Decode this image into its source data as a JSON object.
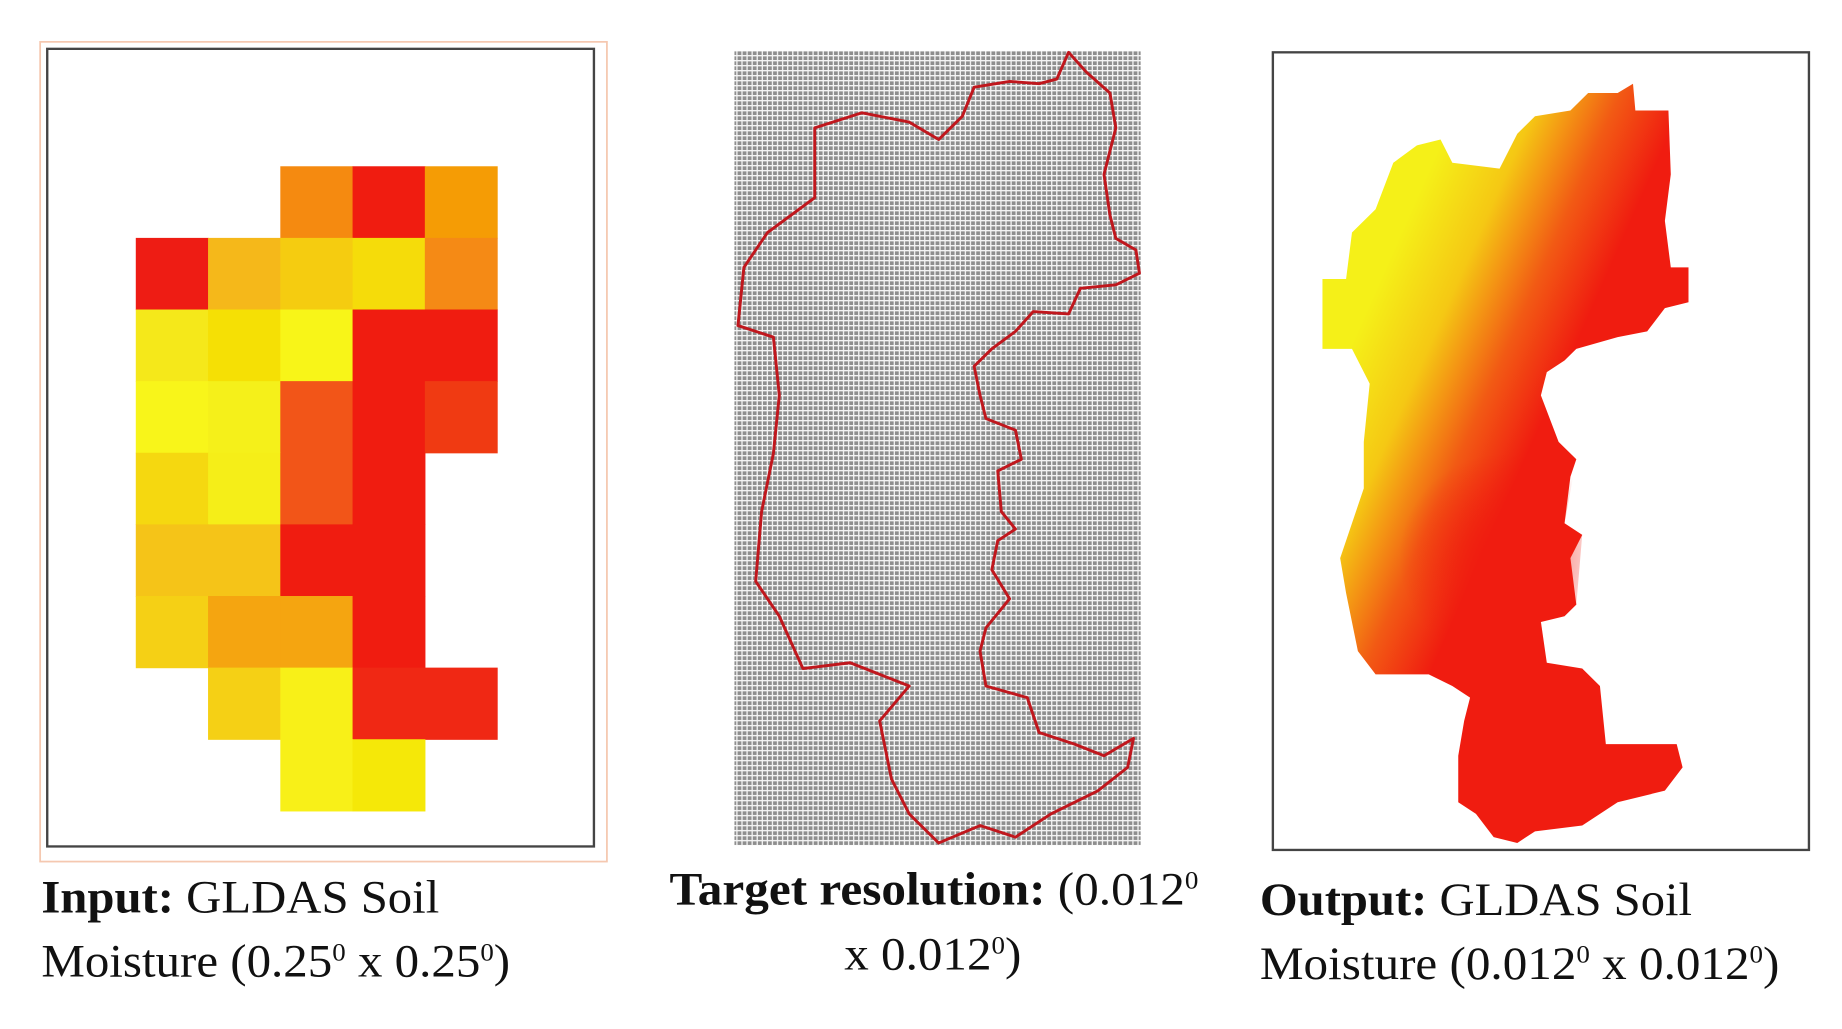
{
  "input_panel": {
    "caption": {
      "label": "Input:",
      "line1_rest": " GLDAS Soil",
      "line2_a": "Moisture (0.25",
      "sup1": "0",
      "line2_b": " x 0.25",
      "sup2": "0",
      "line2_c": ")"
    },
    "grid_columns": 5,
    "grid_rows": 9,
    "cells": [
      [
        null,
        null,
        "#f58a10",
        "#f01c10",
        "#f59c05"
      ],
      [
        "#ee1c14",
        "#f5b81a",
        "#f5cc10",
        "#f5dc0a",
        "#f58a15"
      ],
      [
        "#f5e81a",
        "#f5e005",
        "#f8f518",
        "#f01c10",
        "#f01c10"
      ],
      [
        "#f8f51a",
        "#f5f01a",
        "#f25518",
        "#f01c10",
        "#f03a12"
      ],
      [
        "#f5d810",
        "#f5ee18",
        "#f25518",
        "#f01c10",
        null
      ],
      [
        "#f5c418",
        "#f5c418",
        "#f01c10",
        "#f01c10",
        null
      ],
      [
        "#f5d015",
        "#f5a510",
        "#f5a510",
        "#f01c10",
        null
      ],
      [
        null,
        "#f5d015",
        "#f8f018",
        "#f02814",
        "#f02814"
      ],
      [
        null,
        null,
        "#f8f018",
        "#f5e808",
        null
      ]
    ]
  },
  "target_panel": {
    "caption": {
      "label": "Target resolution:",
      "line1_rest": " (0.012",
      "sup1": "0",
      "line2_a": "x 0.012",
      "sup2": "0",
      "line2_c": ")"
    },
    "grid_color": "#9a9a9a",
    "outline_color": "#c0171d"
  },
  "output_panel": {
    "caption": {
      "label": "Output:",
      "line1_rest": " GLDAS Soil",
      "line2_a": "Moisture (0.012",
      "sup1": "0",
      "line2_b": " x 0.012",
      "sup2": "0",
      "line2_c": ")"
    },
    "color_low": "#f5f018",
    "color_high": "#f01c10"
  }
}
